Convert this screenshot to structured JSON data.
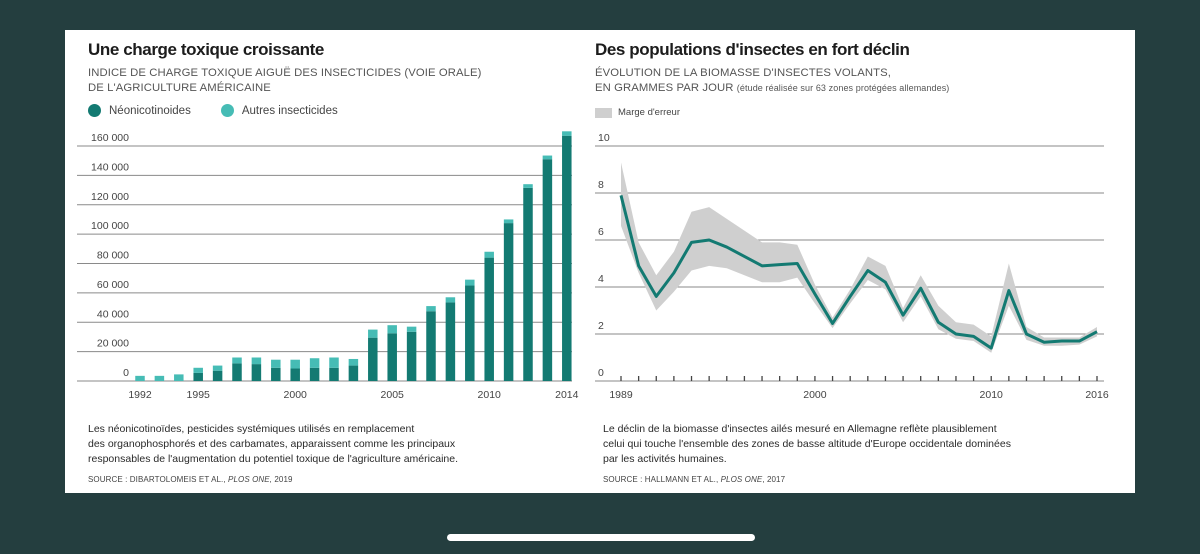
{
  "left_panel": {
    "title": "Une charge toxique croissante",
    "subtitle_line1": "INDICE DE CHARGE TOXIQUE AIGUË DES INSECTICIDES (VOIE ORALE)",
    "subtitle_line2": "DE L'AGRICULTURE AMÉRICAINE",
    "legend": [
      {
        "label": "Néonicotinoides",
        "color": "#137a72"
      },
      {
        "label": "Autres insecticides",
        "color": "#46bcb5"
      }
    ],
    "caption_line1": "Les néonicotinoïdes, pesticides systémiques utilisés en remplacement",
    "caption_line2": "des organophosphorés et des carbamates, apparaissent comme les principaux",
    "caption_line3": "responsables de l'augmentation du potentiel toxique de l'agriculture américaine.",
    "source_prefix": "SOURCE : DIBARTOLOMEIS ET AL., ",
    "source_journal": "PLOS ONE,",
    "source_year": " 2019"
  },
  "right_panel": {
    "title": "Des populations d'insectes en fort déclin",
    "subtitle_line1": "ÉVOLUTION DE LA BIOMASSE D'INSECTES VOLANTS,",
    "subtitle_line2": "EN GRAMMES PAR JOUR",
    "subtitle_note": "(étude réalisée sur 63 zones protégées allemandes)",
    "legend_label": "Marge d'erreur",
    "caption_line1": "Le déclin de la biomasse d'insectes ailés mesuré en Allemagne reflète plausiblement",
    "caption_line2": "celui qui touche l'ensemble des zones de basse altitude d'Europe occidentale dominées",
    "caption_line3": "par les activités humaines.",
    "source_prefix": "SOURCE : HALLMANN ET AL., ",
    "source_journal": "PLOS ONE",
    "source_year": ", 2017"
  },
  "colors": {
    "neonic": "#137a72",
    "other": "#46bcb5",
    "line": "#137a72",
    "band": "#cfcfcf",
    "grid": "#8a8a8a"
  },
  "chart_data": [
    {
      "type": "bar",
      "stacked": true,
      "title": "Une charge toxique croissante",
      "ylabel": "Indice de charge toxique aiguë des insecticides (voie orale)",
      "xlabel": "",
      "ylim": [
        0,
        160000
      ],
      "yticks": [
        0,
        20000,
        40000,
        60000,
        80000,
        100000,
        120000,
        140000,
        160000
      ],
      "ytick_labels": [
        "0",
        "20 000",
        "40 000",
        "60 000",
        "80 000",
        "100 000",
        "120 000",
        "140 000",
        "160 000"
      ],
      "xtick_labels": [
        "1992",
        "1995",
        "2000",
        "2005",
        "2010",
        "2014"
      ],
      "legend_position": "top-left",
      "grid": true,
      "categories": [
        1992,
        1993,
        1994,
        1995,
        1996,
        1997,
        1998,
        1999,
        2000,
        2001,
        2002,
        2003,
        2004,
        2005,
        2006,
        2007,
        2008,
        2009,
        2010,
        2011,
        2012,
        2013,
        2014
      ],
      "series": [
        {
          "name": "Néonicotinoides",
          "values": [
            0,
            0,
            0,
            5500,
            7000,
            12000,
            11500,
            9000,
            8500,
            9000,
            9000,
            10500,
            29500,
            32500,
            33500,
            47500,
            53500,
            65000,
            84000,
            107500,
            131500,
            151000,
            167000
          ]
        },
        {
          "name": "Autres insecticides",
          "values": [
            3500,
            3500,
            4500,
            3500,
            3500,
            4000,
            4500,
            5500,
            6000,
            6500,
            7000,
            4500,
            5500,
            5500,
            3500,
            3500,
            3500,
            4000,
            4000,
            2500,
            2500,
            2500,
            3000
          ]
        }
      ]
    },
    {
      "type": "line",
      "title": "Des populations d'insectes en fort déclin",
      "ylabel": "Biomasse d'insectes volants (g/jour)",
      "xlabel": "",
      "ylim": [
        0,
        10
      ],
      "xlim": [
        1989,
        2016
      ],
      "yticks": [
        0,
        2,
        4,
        6,
        8,
        10
      ],
      "xtick_labels": [
        "1989",
        "2000",
        "2010",
        "2016"
      ],
      "legend_position": "top-left",
      "grid": true,
      "x": [
        1989,
        1990,
        1991,
        1992,
        1993,
        1994,
        1995,
        1996,
        1997,
        1998,
        1999,
        2000,
        2001,
        2002,
        2003,
        2004,
        2005,
        2006,
        2007,
        2008,
        2009,
        2010,
        2011,
        2012,
        2013,
        2014,
        2015,
        2016
      ],
      "series": [
        {
          "name": "Biomasse",
          "values": [
            7.9,
            4.9,
            3.6,
            4.6,
            5.9,
            6.0,
            5.7,
            5.3,
            4.9,
            4.95,
            5.0,
            3.7,
            2.45,
            3.6,
            4.7,
            4.2,
            2.8,
            3.95,
            2.5,
            2.0,
            1.9,
            1.4,
            3.85,
            2.0,
            1.65,
            1.7,
            1.7,
            2.1
          ]
        },
        {
          "name": "Marge d'erreur (haut)",
          "values": [
            9.3,
            5.9,
            4.5,
            5.5,
            7.2,
            7.4,
            6.9,
            6.4,
            5.9,
            5.9,
            5.8,
            4.1,
            2.7,
            3.9,
            5.3,
            4.9,
            3.1,
            4.5,
            3.2,
            2.5,
            2.4,
            1.9,
            5.0,
            2.3,
            1.85,
            1.85,
            1.85,
            2.3
          ]
        },
        {
          "name": "Marge d'erreur (bas)",
          "values": [
            6.6,
            4.6,
            3.0,
            3.8,
            4.7,
            4.9,
            4.8,
            4.5,
            4.2,
            4.2,
            4.4,
            3.3,
            2.25,
            3.3,
            4.3,
            3.9,
            2.5,
            3.6,
            2.2,
            1.8,
            1.7,
            1.2,
            3.2,
            1.75,
            1.5,
            1.5,
            1.55,
            1.9
          ]
        }
      ]
    }
  ]
}
